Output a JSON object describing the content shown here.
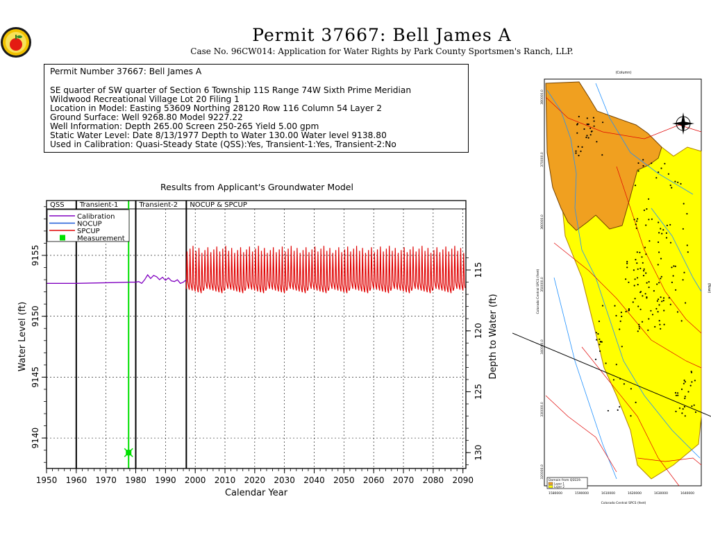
{
  "title": "Permit  37667:   Bell James A",
  "subtitle": "Case No. 96CW014: Application for Water Rights by Park County Sportsmen's Ranch, LLP.",
  "info": {
    "permit_line": "Permit Number 37667: Bell James A",
    "lines": [
      "SE quarter of SW quarter of Section 6 Township 11S Range 74W Sixth Prime Meridian",
      "Wildwood Recreational Village Lot 20 Filing 1",
      "Location in Model: Easting 53609 Northing   28120 Row 116 Column 54 Layer 2",
      "Ground Surface: Well   9268.80 Model   9227.22",
      "Well Information: Depth    265.00 Screen 250-265 Yield      5.00 gpm",
      "Static Water Level: Date   8/13/1977 Depth to Water    130.00 Water level  9138.80",
      "Used in Calibration: Quasi-Steady State (QSS):Yes, Transient-1:Yes, Transient-2:No"
    ]
  },
  "chart_data": {
    "type": "line",
    "title": "Results from Applicant's Groundwater Model",
    "xlabel": "Calendar Year",
    "ylabel": "Water Level (ft)",
    "ylabel_right": "Depth to Water (ft)",
    "xlim": [
      1950,
      2091
    ],
    "ylim": [
      9137.5,
      9159.5
    ],
    "x_ticks": [
      1950,
      1960,
      1970,
      1980,
      1990,
      2000,
      2010,
      2020,
      2030,
      2040,
      2050,
      2060,
      2070,
      2080,
      2090
    ],
    "y_ticks": [
      9140,
      9145,
      9150,
      9155
    ],
    "y_right_ticks": [
      115,
      120,
      125,
      130
    ],
    "grid": true,
    "periods": [
      {
        "label": "QSS",
        "start": 1950,
        "end": 1960
      },
      {
        "label": "Transient-1",
        "start": 1960,
        "end": 1980
      },
      {
        "label": "Transient-2",
        "start": 1980,
        "end": 1997
      },
      {
        "label": "NOCUP  &  SPCUP",
        "start": 1997,
        "end": 2091
      }
    ],
    "vertical_lines": [
      1960,
      1980,
      1997
    ],
    "legend": {
      "placement": "top-left",
      "entries": [
        {
          "name": "Calibration",
          "color": "#8000c0"
        },
        {
          "name": "NOCUP",
          "color": "#1e5ad8"
        },
        {
          "name": "SPCUP",
          "color": "#e00000"
        },
        {
          "name": "Measurement",
          "color": "#00e000"
        }
      ]
    },
    "series": [
      {
        "name": "Calibration",
        "color": "#8000c0",
        "x": [
          1950,
          1960,
          1970,
          1978,
          1980,
          1981,
          1982,
          1983,
          1984,
          1985,
          1986,
          1987,
          1988,
          1989,
          1990,
          1991,
          1992,
          1993,
          1994,
          1995,
          1996,
          1997
        ],
        "y": [
          9152.7,
          9152.7,
          9152.75,
          9152.8,
          9152.8,
          9152.85,
          9152.7,
          9153.0,
          9153.4,
          9153.1,
          9153.35,
          9153.25,
          9153.0,
          9153.2,
          9152.95,
          9153.15,
          9152.9,
          9152.85,
          9153.0,
          9152.7,
          9152.8,
          9153.0
        ]
      },
      {
        "name": "SPCUP",
        "color": "#e00000",
        "start": 1997,
        "end": 2090,
        "low": 9151.9,
        "high": 9155.2,
        "peak": 9156.0
      },
      {
        "name": "Measurement",
        "color": "#00e000",
        "x": [
          1977.6
        ],
        "y": [
          9138.8
        ]
      }
    ],
    "measurement_line_year": 1977.6
  },
  "map": {
    "legend_title": "Domain  from  QSS19.",
    "legend_items": [
      {
        "label": "Layer 1",
        "color": "#f0a020"
      },
      {
        "label": "Layer 2",
        "color": "#ffff00"
      }
    ],
    "x_axis_label": "Colorado Central SPCS (feet)",
    "y_axis_label": "Colorado Central SPCS (feet)",
    "top_label": "(Column)",
    "right_label": "(Row)",
    "x_ticks": [
      "1580000",
      "1590000",
      "1610000",
      "1620000",
      "1630000",
      "1640000"
    ],
    "y_ticks": [
      "380000.0",
      "370000.0",
      "360000.0",
      "350000.0",
      "340000.0",
      "330000.0",
      "320000.0"
    ]
  }
}
